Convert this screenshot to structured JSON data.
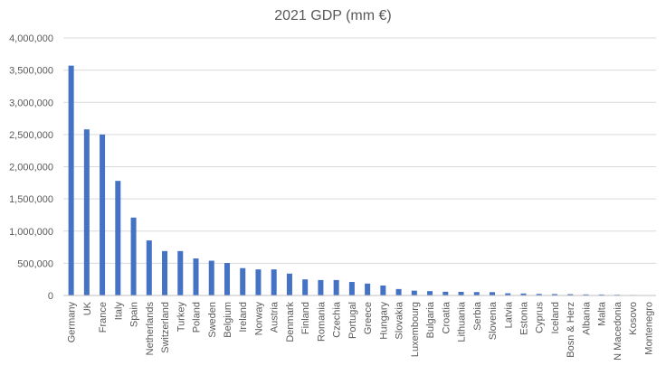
{
  "chart_data": {
    "type": "bar",
    "title": "2021 GDP (mm €)",
    "xlabel": "",
    "ylabel": "",
    "ylim": [
      0,
      4000000
    ],
    "yticks": [
      "0",
      "500,000",
      "1,000,000",
      "1,500,000",
      "2,000,000",
      "2,500,000",
      "3,000,000",
      "3,500,000",
      "4,000,000"
    ],
    "ytick_values": [
      0,
      500000,
      1000000,
      1500000,
      2000000,
      2500000,
      3000000,
      3500000,
      4000000
    ],
    "grid": true,
    "bar_color": "#4472c4",
    "categories": [
      "Germany",
      "UK",
      "France",
      "Italy",
      "Spain",
      "Netherlands",
      "Switzerland",
      "Turkey",
      "Poland",
      "Sweden",
      "Belgium",
      "Ireland",
      "Norway",
      "Austria",
      "Denmark",
      "Finland",
      "Romania",
      "Czechia",
      "Portugal",
      "Greece",
      "Hungary",
      "Slovakia",
      "Luxembourg",
      "Bulgaria",
      "Croatia",
      "Lithuania",
      "Serbia",
      "Slovenia",
      "Latvia",
      "Estonia",
      "Cyprus",
      "Iceland",
      "Bosn & Herz",
      "Albania",
      "Malta",
      "N Macedonia",
      "Kosovo",
      "Montenegro"
    ],
    "values": [
      3570000,
      2580000,
      2500000,
      1780000,
      1210000,
      855000,
      690000,
      690000,
      575000,
      540000,
      505000,
      425000,
      405000,
      405000,
      340000,
      250000,
      240000,
      240000,
      210000,
      185000,
      155000,
      100000,
      75000,
      68000,
      58000,
      56000,
      53000,
      52000,
      34000,
      31000,
      24000,
      22000,
      20000,
      16000,
      15000,
      12000,
      8000,
      5000
    ]
  }
}
